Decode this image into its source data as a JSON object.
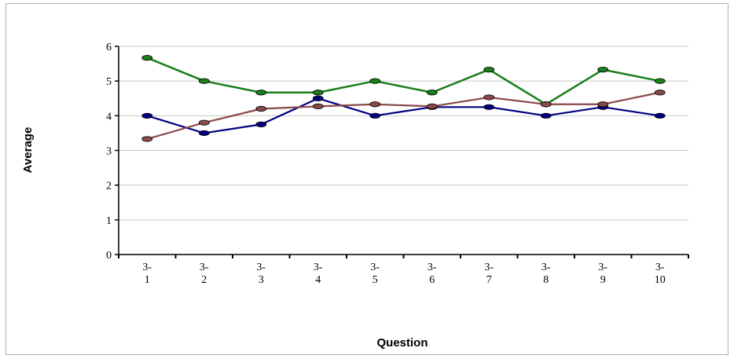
{
  "chart_data": {
    "type": "line",
    "title": "",
    "xlabel": "Question",
    "ylabel": "Average",
    "categories": [
      "3-1",
      "3-2",
      "3-3",
      "3-4",
      "3-5",
      "3-6",
      "3-7",
      "3-8",
      "3-9",
      "3-10"
    ],
    "category_lines": [
      [
        "3-",
        "1"
      ],
      [
        "3-",
        "2"
      ],
      [
        "3-",
        "3"
      ],
      [
        "3-",
        "4"
      ],
      [
        "3-",
        "5"
      ],
      [
        "3-",
        "6"
      ],
      [
        "3-",
        "7"
      ],
      [
        "3-",
        "8"
      ],
      [
        "3-",
        "9"
      ],
      [
        "3-",
        "10"
      ]
    ],
    "ylim": [
      0,
      6
    ],
    "yticks": [
      0,
      1,
      2,
      3,
      4,
      5,
      6
    ],
    "grid": true,
    "legend": "none",
    "series": [
      {
        "color": "#1a7f1a",
        "values": [
          5.67,
          5.0,
          4.67,
          4.67,
          5.0,
          4.67,
          5.33,
          4.33,
          5.33,
          5.0
        ]
      },
      {
        "color": "#000080",
        "values": [
          4.0,
          3.5,
          3.75,
          4.5,
          4.0,
          4.25,
          4.25,
          4.0,
          4.25,
          4.0
        ]
      },
      {
        "color": "#8b4a4a",
        "values": [
          3.33,
          3.8,
          4.2,
          4.27,
          4.33,
          4.27,
          4.53,
          4.33,
          4.33,
          4.67
        ]
      }
    ]
  }
}
